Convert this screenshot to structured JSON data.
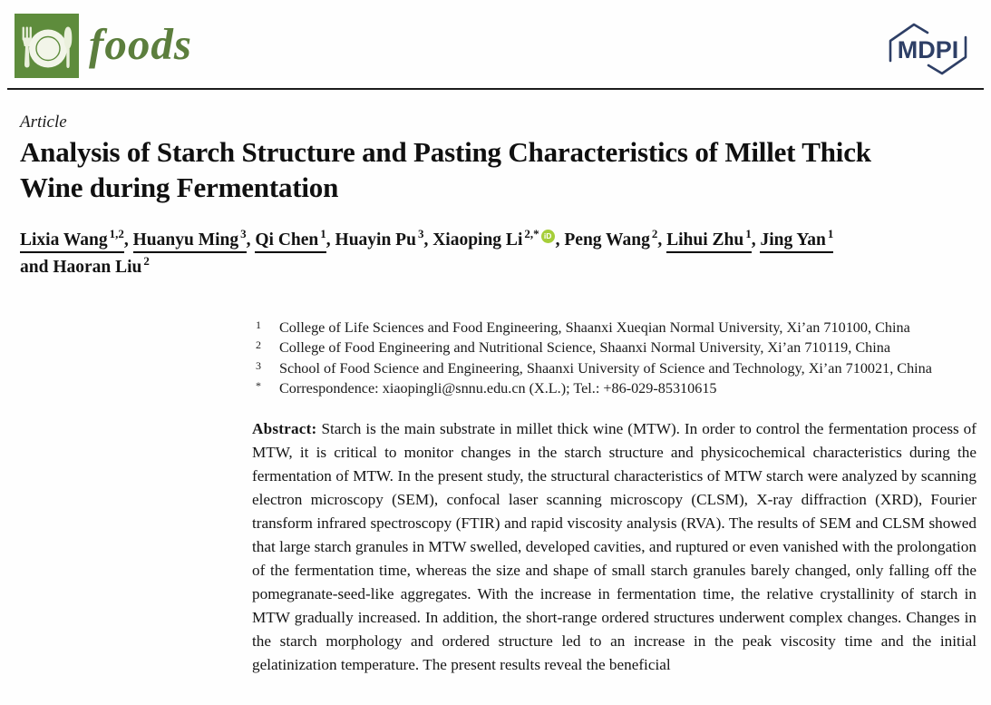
{
  "journal": {
    "name": "foods",
    "publisher": "MDPI"
  },
  "colors": {
    "logo_green": "#5e8c3c",
    "wordmark_green": "#5c7e3d",
    "mdpi_navy": "#2e3f66",
    "orcid_green": "#a6ce39",
    "rule_dark": "#1c1c1c"
  },
  "icons": {
    "journal_logo": "fork-plate-knife-icon",
    "publisher_logo": "mdpi-hexagon-icon",
    "orcid": "orcid-id-icon"
  },
  "article": {
    "type_label": "Article",
    "title": "Analysis of Starch Structure and Pasting Characteristics of Millet Thick Wine during Fermentation"
  },
  "authors": {
    "orcid_label": "iD",
    "list": [
      {
        "name": "Lixia Wang",
        "sup": "1,2",
        "underline": true,
        "sep": ", "
      },
      {
        "name": "Huanyu Ming",
        "sup": "3",
        "underline": true,
        "sep": ", "
      },
      {
        "name": "Qi Chen",
        "sup": "1",
        "underline": true,
        "sep": ", "
      },
      {
        "name": "Huayin Pu",
        "sup": "3",
        "underline": false,
        "sep": ", "
      },
      {
        "name": "Xiaoping Li",
        "sup": "2,*",
        "underline": false,
        "orcid": true,
        "sep": ", "
      },
      {
        "name": "Peng Wang",
        "sup": "2",
        "underline": false,
        "sep": ", "
      },
      {
        "name": "Lihui Zhu",
        "sup": "1",
        "underline": true,
        "sep": ", "
      },
      {
        "name": "Jing Yan",
        "sup": "1",
        "underline": true,
        "sep": "",
        "line_break_after": true
      },
      {
        "name": "and Haoran Liu",
        "sup": "2",
        "underline": false,
        "sep": ""
      }
    ]
  },
  "affiliations": [
    {
      "marker": "1",
      "text": "College of Life Sciences and Food Engineering, Shaanxi Xueqian Normal University, Xi’an 710100, China"
    },
    {
      "marker": "2",
      "text": "College of Food Engineering and Nutritional Science, Shaanxi Normal University, Xi’an 710119, China"
    },
    {
      "marker": "3",
      "text": "School of Food Science and Engineering, Shaanxi University of Science and Technology, Xi’an 710021, China"
    },
    {
      "marker": "*",
      "text": "Correspondence: xiaopingli@snnu.edu.cn (X.L.); Tel.: +86-029-85310615"
    }
  ],
  "abstract": {
    "label": "Abstract:",
    "text": "Starch is the main substrate in millet thick wine (MTW). In order to control the fermentation process of MTW, it is critical to monitor changes in the starch structure and physicochemical characteristics during the fermentation of MTW. In the present study, the structural characteristics of MTW starch were analyzed by scanning electron microscopy (SEM), confocal laser scanning microscopy (CLSM), X-ray diffraction (XRD), Fourier transform infrared spectroscopy (FTIR) and rapid viscosity analysis (RVA). The results of SEM and CLSM showed that large starch granules in MTW swelled, developed cavities, and ruptured or even vanished with the prolongation of the fermentation time, whereas the size and shape of small starch granules barely changed, only falling off the pomegranate-seed-like aggregates. With the increase in fermentation time, the relative crystallinity of starch in MTW gradually increased. In addition, the short-range ordered structures underwent complex changes. Changes in the starch morphology and ordered structure led to an increase in the peak viscosity time and the initial gelatinization temperature. The present results reveal the beneficial"
  }
}
